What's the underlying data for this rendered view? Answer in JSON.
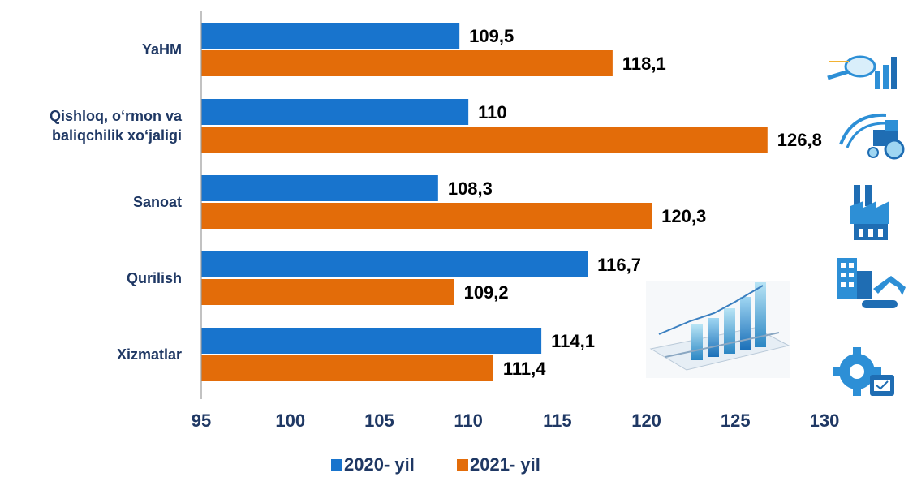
{
  "chart_data": {
    "type": "bar",
    "orientation": "horizontal",
    "categories": [
      [
        "YaHM"
      ],
      [
        "Qishloq, o‘rmon va",
        "baliqchilik xo‘jaligi"
      ],
      [
        "Sanoat"
      ],
      [
        "Qurilish"
      ],
      [
        "Xizmatlar"
      ]
    ],
    "series": [
      {
        "name": "2020- yil",
        "color": "#1874cd",
        "values": [
          109.5,
          110,
          108.3,
          116.7,
          114.1
        ],
        "labels": [
          "109,5",
          "110",
          "108,3",
          "116,7",
          "114,1"
        ]
      },
      {
        "name": "2021- yil",
        "color": "#e36c09",
        "values": [
          118.1,
          126.8,
          120.3,
          109.2,
          111.4
        ],
        "labels": [
          "118,1",
          "126,8",
          "120,3",
          "109,2",
          "111,4"
        ]
      }
    ],
    "xlim": [
      95,
      130
    ],
    "xticks": [
      "95",
      "100",
      "105",
      "110",
      "115",
      "120",
      "125",
      "130"
    ],
    "legend_position": "bottom",
    "grid": false,
    "icons": [
      "magnifier-analytics-icon",
      "tractor-icon",
      "factory-icon",
      "construction-excavator-icon",
      "gear-services-icon"
    ],
    "illustration": "3d-bar-chart-icon"
  }
}
